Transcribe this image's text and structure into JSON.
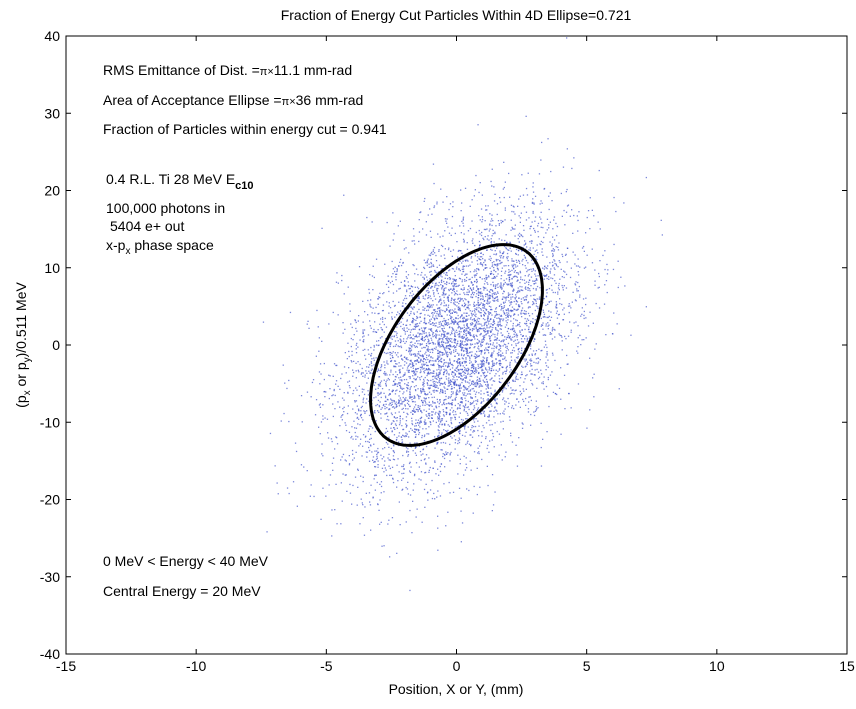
{
  "chart_data": {
    "type": "scatter",
    "title": "Fraction of Energy Cut Particles Within 4D Ellipse=0.721",
    "xlabel": "Position, X or Y, (mm)",
    "ylabel": {
      "open": "(p",
      "sub1": "x",
      "mid": " or p",
      "sub2": "y",
      "close": ")/0.511 MeV"
    },
    "xlim": [
      -15,
      15
    ],
    "ylim": [
      -40,
      40
    ],
    "xticks": [
      -15,
      -10,
      -5,
      0,
      5,
      10,
      15
    ],
    "yticks": [
      -40,
      -30,
      -20,
      -10,
      0,
      10,
      20,
      30,
      40
    ],
    "grid": false,
    "point_color": "#4455cc",
    "ellipse_color": "#000000",
    "series": [
      {
        "type": "scatter",
        "n_points": 5404,
        "center": [
          0,
          0
        ],
        "approx_std_x": 2.2,
        "approx_std_y": 8.5,
        "correlation": 0.45
      }
    ],
    "acceptance_ellipse": {
      "center": [
        0,
        0
      ],
      "x_extent": [
        -3.3,
        3.3
      ],
      "y_extent": [
        -13,
        13
      ],
      "topmost_point": [
        1.8,
        12.8
      ],
      "rightmost_point": [
        3.3,
        6.5
      ]
    },
    "annotations": {
      "line1": {
        "pre": "RMS Emittance of Dist. =",
        "sym": "π×",
        "post": "11.1 mm-rad"
      },
      "line2": {
        "pre": "Area of Acceptance Ellipse =",
        "sym": "π×",
        "post": "36 mm-rad"
      },
      "line3": "Fraction of Particles within energy cut = 0.941",
      "line4": {
        "pre": "0.4 R.L. Ti 28 MeV E",
        "sub": "c10"
      },
      "line5": "100,000 photons in",
      "line6": "5404 e+ out",
      "line7": {
        "pre": "x-p",
        "sub": "x",
        "post": " phase space"
      },
      "line8": "0 MeV < Energy < 40 MeV",
      "line9": "Central Energy = 20 MeV"
    }
  }
}
